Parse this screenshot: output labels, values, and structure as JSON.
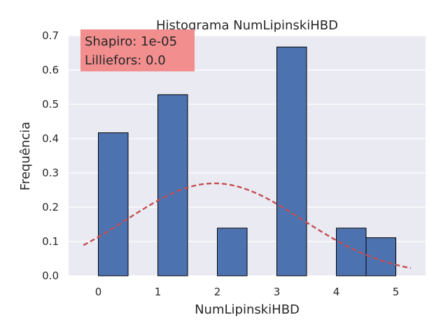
{
  "chart_data": {
    "type": "bar",
    "title": "Histograma NumLipinskiHBD",
    "xlabel": "NumLipinskiHBD",
    "ylabel": "Frequência",
    "xlim": [
      -0.5,
      5.5
    ],
    "ylim": [
      0,
      0.7
    ],
    "xticks": [
      "0",
      "1",
      "2",
      "3",
      "4",
      "5"
    ],
    "yticks": [
      "0.0",
      "0.1",
      "0.2",
      "0.3",
      "0.4",
      "0.5",
      "0.6",
      "0.7"
    ],
    "grid": true,
    "bins": [
      {
        "x0": 0.0,
        "x1": 0.5,
        "value": 0.417
      },
      {
        "x0": 1.0,
        "x1": 1.5,
        "value": 0.528
      },
      {
        "x0": 2.0,
        "x1": 2.5,
        "value": 0.139
      },
      {
        "x0": 3.0,
        "x1": 3.5,
        "value": 0.667
      },
      {
        "x0": 4.0,
        "x1": 4.5,
        "value": 0.139
      },
      {
        "x0": 4.5,
        "x1": 5.0,
        "value": 0.111
      }
    ],
    "normal_fit": {
      "mean": 1.95,
      "std": 1.48,
      "x_range": [
        -0.25,
        5.25
      ],
      "style": "dashed"
    },
    "stats_box": {
      "lines": [
        "Shapiro: 1e-05",
        "Lilliefors: 0.0"
      ]
    },
    "colors": {
      "plot_bg": "#eaeaf2",
      "bar": "#4c72b0",
      "bar_edge": "#000000",
      "curve": "#c44e52",
      "grid": "#ffffff",
      "stats_box": "#f28e8e"
    }
  }
}
